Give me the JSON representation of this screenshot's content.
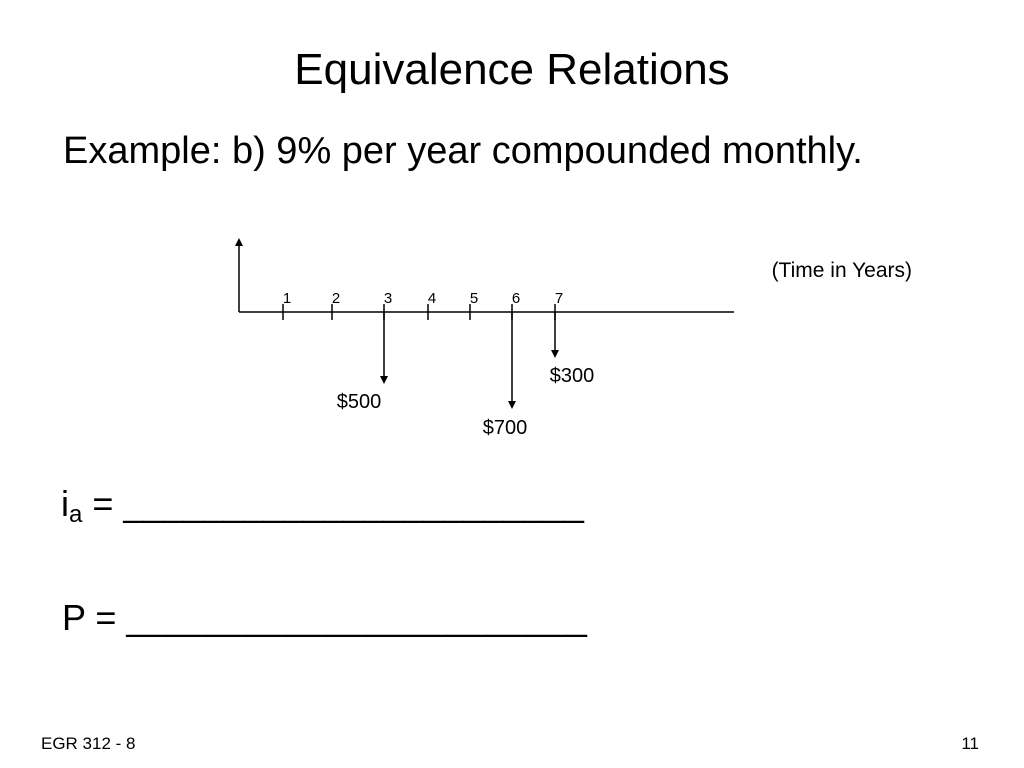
{
  "slide": {
    "title": "Equivalence Relations",
    "subtitle": "Example: b) 9% per year compounded monthly."
  },
  "diagram": {
    "axis_label": "(Time in Years)",
    "periods": [
      "1",
      "2",
      "3",
      "4",
      "5",
      "6",
      "7"
    ],
    "cash_flows": [
      {
        "period": 3,
        "label": "$500"
      },
      {
        "period": 6,
        "label": "$700"
      },
      {
        "period": 7,
        "label": "$300"
      }
    ]
  },
  "equations": {
    "ia_symbol": "i",
    "ia_subscript": "a",
    "ia_rest": " = _______________________",
    "p_text": "P =  _______________________"
  },
  "footer": {
    "course": "EGR 312 - 8",
    "page_number": "11"
  }
}
